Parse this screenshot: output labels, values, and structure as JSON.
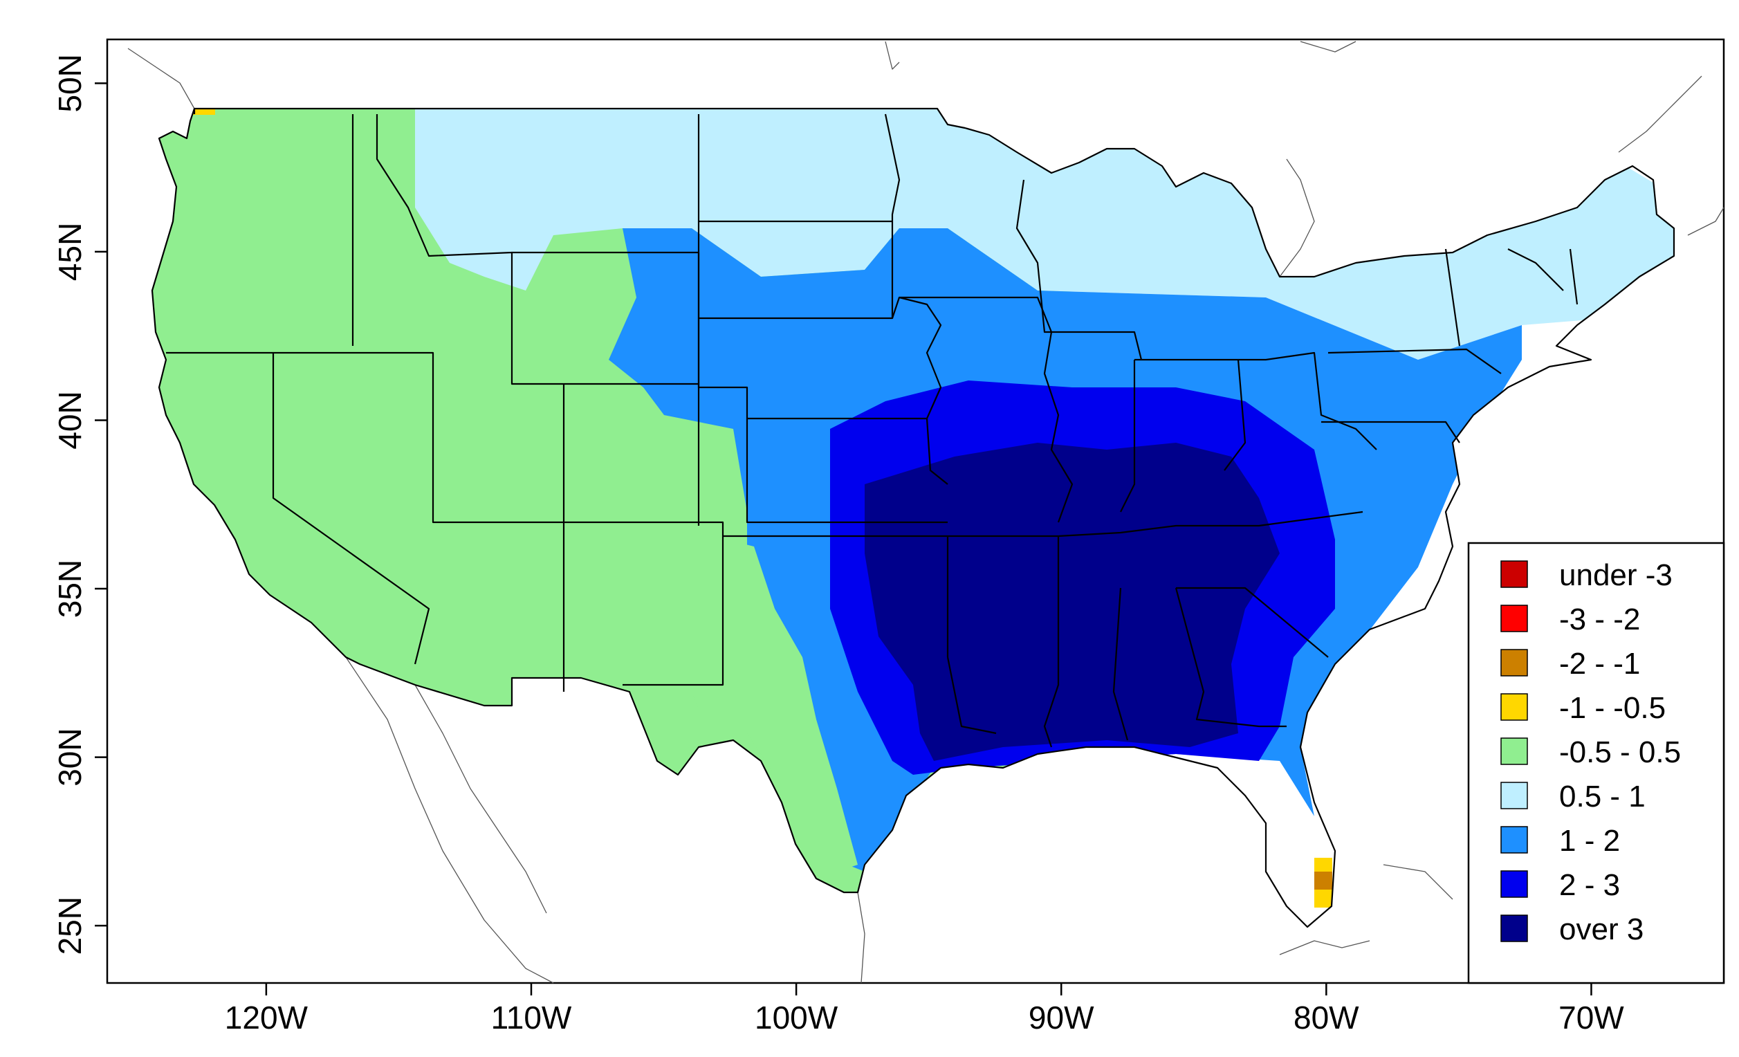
{
  "map": {
    "region": "contiguous-united-states",
    "lon_range": [
      -126,
      -65
    ],
    "lat_range": [
      23.3,
      51.3
    ]
  },
  "axes": {
    "x_ticks": [
      {
        "value": -120,
        "label": "120W"
      },
      {
        "value": -110,
        "label": "110W"
      },
      {
        "value": -100,
        "label": "100W"
      },
      {
        "value": -90,
        "label": "90W"
      },
      {
        "value": -80,
        "label": "80W"
      },
      {
        "value": -70,
        "label": "70W"
      }
    ],
    "y_ticks": [
      {
        "value": 25,
        "label": "25N"
      },
      {
        "value": 30,
        "label": "30N"
      },
      {
        "value": 35,
        "label": "35N"
      },
      {
        "value": 40,
        "label": "40N"
      },
      {
        "value": 45,
        "label": "45N"
      },
      {
        "value": 50,
        "label": "50N"
      }
    ]
  },
  "legend": {
    "placement": "bottom-right",
    "items": [
      {
        "label": "under -3",
        "color": "#cc0000"
      },
      {
        "label": "-3 - -2",
        "color": "#ff0000"
      },
      {
        "label": "-2 - -1",
        "color": "#cc8000"
      },
      {
        "label": "-1 - -0.5",
        "color": "#ffd700"
      },
      {
        "label": "-0.5 - 0.5",
        "color": "#90ee90"
      },
      {
        "label": "0.5 - 1",
        "color": "#bfefff"
      },
      {
        "label": "1 - 2",
        "color": "#1e90ff"
      },
      {
        "label": "2 - 3",
        "color": "#0000ee"
      },
      {
        "label": "over 3",
        "color": "#00008b"
      }
    ]
  },
  "regions": [
    {
      "name": "pacific-northwest-and-great-basin",
      "category": "-0.5 - 0.5"
    },
    {
      "name": "southwest",
      "category": "-0.5 - 0.5"
    },
    {
      "name": "west-texas",
      "category": "-0.5 - 0.5"
    },
    {
      "name": "northern-plains",
      "category": "0.5 - 1"
    },
    {
      "name": "upper-midwest-and-northeast",
      "category": "0.5 - 1"
    },
    {
      "name": "central-plains-and-mid-atlantic",
      "category": "1 - 2"
    },
    {
      "name": "mississippi-valley",
      "category": "2 - 3"
    },
    {
      "name": "southeast",
      "category": "over 3"
    },
    {
      "name": "northwest-washington-corner",
      "category": "-1 - -0.5"
    },
    {
      "name": "south-florida-cells",
      "category": "-2 - -1"
    }
  ]
}
